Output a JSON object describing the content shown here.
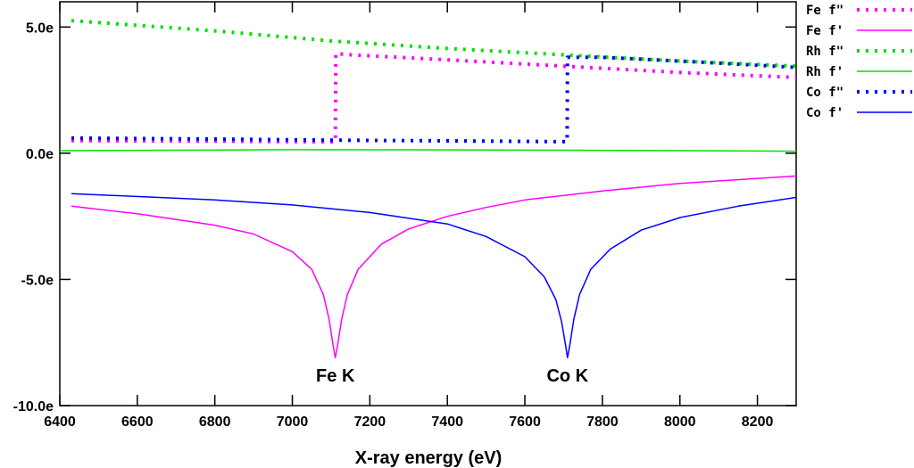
{
  "chart_data": {
    "type": "line",
    "title": "",
    "xlabel": "X-ray energy (eV)",
    "ylabel": "",
    "xlim": [
      6400,
      8300
    ],
    "ylim": [
      -10.0,
      6.0
    ],
    "xticks": [
      {
        "value": 6400,
        "label": "6400"
      },
      {
        "value": 6600,
        "label": "6600"
      },
      {
        "value": 6800,
        "label": "6800"
      },
      {
        "value": 7000,
        "label": "7000"
      },
      {
        "value": 7200,
        "label": "7200"
      },
      {
        "value": 7400,
        "label": "7400"
      },
      {
        "value": 7600,
        "label": "7600"
      },
      {
        "value": 7800,
        "label": "7800"
      },
      {
        "value": 8000,
        "label": "8000"
      },
      {
        "value": 8200,
        "label": "8200"
      }
    ],
    "yticks": [
      {
        "value": 5.0,
        "label": "5.0e"
      },
      {
        "value": 0.0,
        "label": "0.0e"
      },
      {
        "value": -5.0,
        "label": "-5.0e"
      },
      {
        "value": -10.0,
        "label": "-10.0e"
      }
    ],
    "legend_position": "outside-right-top",
    "series": [
      {
        "name": "Fe f\"",
        "color": "#ff00ff",
        "style": "dotted",
        "points": [
          [
            6430,
            0.5
          ],
          [
            6800,
            0.48
          ],
          [
            7000,
            0.46
          ],
          [
            7100,
            0.45
          ],
          [
            7111,
            0.45
          ],
          [
            7112,
            3.95
          ],
          [
            7150,
            3.9
          ],
          [
            7400,
            3.7
          ],
          [
            7700,
            3.45
          ],
          [
            8000,
            3.2
          ],
          [
            8300,
            3.0
          ]
        ]
      },
      {
        "name": "Fe f'",
        "color": "#ff00ff",
        "style": "solid",
        "points": [
          [
            6430,
            -2.1
          ],
          [
            6600,
            -2.4
          ],
          [
            6800,
            -2.85
          ],
          [
            6900,
            -3.2
          ],
          [
            7000,
            -3.9
          ],
          [
            7050,
            -4.6
          ],
          [
            7080,
            -5.6
          ],
          [
            7095,
            -6.6
          ],
          [
            7105,
            -7.6
          ],
          [
            7111,
            -8.1
          ],
          [
            7117,
            -7.6
          ],
          [
            7127,
            -6.6
          ],
          [
            7142,
            -5.6
          ],
          [
            7170,
            -4.6
          ],
          [
            7230,
            -3.6
          ],
          [
            7300,
            -3.0
          ],
          [
            7400,
            -2.5
          ],
          [
            7500,
            -2.15
          ],
          [
            7600,
            -1.85
          ],
          [
            7800,
            -1.5
          ],
          [
            8000,
            -1.2
          ],
          [
            8300,
            -0.9
          ]
        ]
      },
      {
        "name": "Rh f\"",
        "color": "#00e000",
        "style": "dotted",
        "points": [
          [
            6430,
            5.25
          ],
          [
            6800,
            4.85
          ],
          [
            7100,
            4.45
          ],
          [
            7400,
            4.15
          ],
          [
            7700,
            3.9
          ],
          [
            8000,
            3.65
          ],
          [
            8300,
            3.45
          ]
        ]
      },
      {
        "name": "Rh f'",
        "color": "#00e000",
        "style": "solid",
        "points": [
          [
            6400,
            0.1
          ],
          [
            7000,
            0.14
          ],
          [
            7500,
            0.13
          ],
          [
            8000,
            0.1
          ],
          [
            8300,
            0.08
          ]
        ]
      },
      {
        "name": "Co f\"",
        "color": "#0000ff",
        "style": "dotted",
        "points": [
          [
            6430,
            0.6
          ],
          [
            6800,
            0.56
          ],
          [
            7100,
            0.52
          ],
          [
            7400,
            0.49
          ],
          [
            7600,
            0.47
          ],
          [
            7700,
            0.46
          ],
          [
            7709,
            0.46
          ],
          [
            7710,
            3.8
          ],
          [
            7800,
            3.8
          ],
          [
            8000,
            3.65
          ],
          [
            8300,
            3.4
          ]
        ]
      },
      {
        "name": "Co f'",
        "color": "#0000ff",
        "style": "solid",
        "points": [
          [
            6430,
            -1.6
          ],
          [
            6800,
            -1.85
          ],
          [
            7000,
            -2.05
          ],
          [
            7200,
            -2.35
          ],
          [
            7400,
            -2.8
          ],
          [
            7500,
            -3.3
          ],
          [
            7600,
            -4.1
          ],
          [
            7650,
            -4.9
          ],
          [
            7680,
            -5.8
          ],
          [
            7695,
            -6.7
          ],
          [
            7705,
            -7.6
          ],
          [
            7710,
            -8.1
          ],
          [
            7716,
            -7.6
          ],
          [
            7726,
            -6.6
          ],
          [
            7741,
            -5.6
          ],
          [
            7770,
            -4.6
          ],
          [
            7820,
            -3.8
          ],
          [
            7900,
            -3.05
          ],
          [
            8000,
            -2.55
          ],
          [
            8150,
            -2.1
          ],
          [
            8300,
            -1.75
          ]
        ]
      }
    ],
    "annotations": [
      {
        "text": "Fe K",
        "x": 7111,
        "y": -8.8
      },
      {
        "text": "Co K",
        "x": 7710,
        "y": -8.8
      }
    ]
  }
}
